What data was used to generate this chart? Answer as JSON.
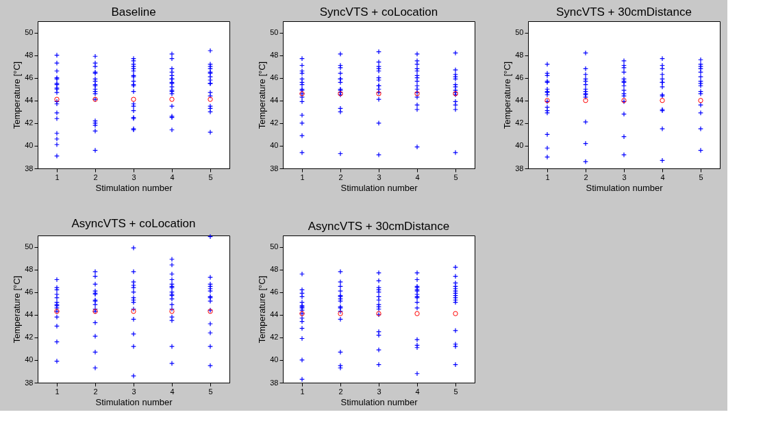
{
  "chart_data": [
    {
      "type": "scatter",
      "title": "Baseline",
      "xlabel": "Stimulation number",
      "ylabel": "Temperature [°C]",
      "xlim": [
        0.5,
        5.5
      ],
      "ylim": [
        38,
        51
      ],
      "xticks": [
        1,
        2,
        3,
        4,
        5
      ],
      "yticks": [
        38,
        40,
        42,
        44,
        46,
        48,
        50
      ],
      "grid": false,
      "series": [
        {
          "color": "#0000ff",
          "marker": "cross",
          "x": [
            1,
            1,
            1,
            1,
            1,
            1,
            1,
            1,
            1,
            1,
            1,
            1,
            1,
            1,
            1,
            1,
            1,
            1,
            2,
            2,
            2,
            2,
            2,
            2,
            2,
            2,
            2,
            2,
            2,
            2,
            2,
            2,
            2,
            2,
            2,
            2,
            3,
            3,
            3,
            3,
            3,
            3,
            3,
            3,
            3,
            3,
            3,
            3,
            3,
            3,
            3,
            3,
            3,
            3,
            3,
            4,
            4,
            4,
            4,
            4,
            4,
            4,
            4,
            4,
            4,
            4,
            4,
            4,
            4,
            4,
            4,
            4,
            5,
            5,
            5,
            5,
            5,
            5,
            5,
            5,
            5,
            5,
            5,
            5,
            5,
            5,
            5,
            5
          ],
          "values": [
            48.0,
            47.3,
            46.6,
            46.0,
            45.9,
            45.5,
            45.4,
            45.1,
            45.0,
            44.7,
            43.9,
            43.7,
            42.9,
            42.4,
            41.1,
            40.6,
            40.1,
            39.1,
            47.9,
            47.3,
            47.0,
            46.5,
            46.4,
            45.9,
            45.7,
            45.4,
            45.3,
            45.0,
            44.8,
            44.6,
            44.1,
            42.2,
            42.0,
            41.8,
            41.3,
            39.6,
            47.7,
            47.5,
            47.2,
            47.0,
            46.8,
            46.6,
            46.2,
            46.1,
            45.7,
            45.4,
            45.3,
            44.8,
            43.7,
            43.5,
            43.1,
            42.5,
            42.4,
            41.5,
            41.4,
            48.1,
            47.7,
            46.8,
            46.5,
            46.2,
            45.9,
            45.9,
            45.6,
            45.5,
            45.2,
            44.9,
            44.8,
            44.6,
            43.5,
            42.6,
            42.5,
            41.4,
            48.4,
            47.2,
            47.0,
            46.8,
            46.5,
            46.4,
            46.1,
            45.8,
            45.5,
            45.5,
            44.7,
            44.4,
            43.5,
            43.3,
            43.0,
            41.2
          ]
        },
        {
          "color": "#ff0000",
          "marker": "circle",
          "x": [
            1,
            2,
            3,
            4,
            5
          ],
          "values": [
            44.1,
            44.1,
            44.1,
            44.1,
            44.1
          ]
        }
      ]
    },
    {
      "type": "scatter",
      "title": "SyncVTS + coLocation",
      "xlabel": "Stimulation number",
      "ylabel": "Temperature [°C]",
      "xlim": [
        0.5,
        5.5
      ],
      "ylim": [
        38,
        51
      ],
      "xticks": [
        1,
        2,
        3,
        4,
        5
      ],
      "yticks": [
        38,
        40,
        42,
        44,
        46,
        48,
        50
      ],
      "grid": false,
      "series": [
        {
          "color": "#0000ff",
          "marker": "cross",
          "x": [
            1,
            1,
            1,
            1,
            1,
            1,
            1,
            1,
            1,
            1,
            1,
            1,
            1,
            1,
            1,
            1,
            2,
            2,
            2,
            2,
            2,
            2,
            2,
            2,
            2,
            2,
            2,
            2,
            2,
            2,
            3,
            3,
            3,
            3,
            3,
            3,
            3,
            3,
            3,
            3,
            3,
            3,
            3,
            3,
            4,
            4,
            4,
            4,
            4,
            4,
            4,
            4,
            4,
            4,
            4,
            4,
            4,
            4,
            4,
            5,
            5,
            5,
            5,
            5,
            5,
            5,
            5,
            5,
            5,
            5,
            5,
            5,
            5
          ],
          "values": [
            47.7,
            47.1,
            46.6,
            46.4,
            45.9,
            45.6,
            45.4,
            45.0,
            44.9,
            44.6,
            44.3,
            43.9,
            42.7,
            42.0,
            40.9,
            39.4,
            48.1,
            47.1,
            46.9,
            46.4,
            45.9,
            45.9,
            45.6,
            45.0,
            44.9,
            44.7,
            44.5,
            43.3,
            43.0,
            39.3,
            48.3,
            47.4,
            47.0,
            46.8,
            46.6,
            46.0,
            45.8,
            45.3,
            45.3,
            45.0,
            44.7,
            44.1,
            42.0,
            39.2,
            48.1,
            47.5,
            47.2,
            46.8,
            46.6,
            46.2,
            46.0,
            45.7,
            45.3,
            45.0,
            44.7,
            44.3,
            43.6,
            43.2,
            39.9,
            48.2,
            46.7,
            46.3,
            46.1,
            45.9,
            45.4,
            45.2,
            44.9,
            44.7,
            44.5,
            43.9,
            43.6,
            43.2,
            39.4
          ]
        },
        {
          "color": "#ff0000",
          "marker": "circle",
          "x": [
            1,
            2,
            3,
            4,
            5
          ],
          "values": [
            44.6,
            44.6,
            44.6,
            44.6,
            44.6
          ]
        }
      ]
    },
    {
      "type": "scatter",
      "title": "SyncVTS + 30cmDistance",
      "xlabel": "Stimulation number",
      "ylabel": "Temperature [°C]",
      "xlim": [
        0.5,
        5.5
      ],
      "ylim": [
        38,
        51
      ],
      "xticks": [
        1,
        2,
        3,
        4,
        5
      ],
      "yticks": [
        38,
        40,
        42,
        44,
        46,
        48,
        50
      ],
      "grid": false,
      "series": [
        {
          "color": "#0000ff",
          "marker": "cross",
          "x": [
            1,
            1,
            1,
            1,
            1,
            1,
            1,
            1,
            1,
            1,
            1,
            1,
            1,
            1,
            1,
            1,
            2,
            2,
            2,
            2,
            2,
            2,
            2,
            2,
            2,
            2,
            2,
            2,
            2,
            2,
            3,
            3,
            3,
            3,
            3,
            3,
            3,
            3,
            3,
            3,
            3,
            3,
            3,
            3,
            3,
            4,
            4,
            4,
            4,
            4,
            4,
            4,
            4,
            4,
            4,
            4,
            4,
            4,
            4,
            5,
            5,
            5,
            5,
            5,
            5,
            5,
            5,
            5,
            5,
            5,
            5,
            5,
            5,
            5
          ],
          "values": [
            47.2,
            46.4,
            46.2,
            45.7,
            45.6,
            45.0,
            44.8,
            44.7,
            44.5,
            43.9,
            43.4,
            43.1,
            42.9,
            41.0,
            39.8,
            39.0,
            48.2,
            46.8,
            46.3,
            45.9,
            45.7,
            45.4,
            45.0,
            44.8,
            44.6,
            44.5,
            44.3,
            42.1,
            40.2,
            38.6,
            47.5,
            47.1,
            46.9,
            46.5,
            45.9,
            45.7,
            45.6,
            45.3,
            44.9,
            44.6,
            44.4,
            43.9,
            42.8,
            40.8,
            39.2,
            47.7,
            47.1,
            46.8,
            46.3,
            45.9,
            45.6,
            45.6,
            45.2,
            44.5,
            44.4,
            43.2,
            43.1,
            41.5,
            38.7,
            47.6,
            47.2,
            47.0,
            46.8,
            46.5,
            46.1,
            45.7,
            45.5,
            45.3,
            44.8,
            44.6,
            43.6,
            42.9,
            41.5,
            39.6
          ]
        },
        {
          "color": "#ff0000",
          "marker": "circle",
          "x": [
            1,
            2,
            3,
            4,
            5
          ],
          "values": [
            44.0,
            44.0,
            44.0,
            44.0,
            44.0
          ]
        }
      ]
    },
    {
      "type": "scatter",
      "title": "AsyncVTS + coLocation",
      "xlabel": "Stimulation number",
      "ylabel": "Temperature [°C]",
      "xlim": [
        0.5,
        5.5
      ],
      "ylim": [
        38,
        51
      ],
      "xticks": [
        1,
        2,
        3,
        4,
        5
      ],
      "yticks": [
        38,
        40,
        42,
        44,
        46,
        48,
        50
      ],
      "grid": false,
      "series": [
        {
          "color": "#0000ff",
          "marker": "cross",
          "x": [
            1,
            1,
            1,
            1,
            1,
            1,
            1,
            1,
            1,
            1,
            1,
            1,
            1,
            1,
            2,
            2,
            2,
            2,
            2,
            2,
            2,
            2,
            2,
            2,
            2,
            2,
            2,
            2,
            2,
            3,
            3,
            3,
            3,
            3,
            3,
            3,
            3,
            3,
            3,
            3,
            3,
            3,
            3,
            4,
            4,
            4,
            4,
            4,
            4,
            4,
            4,
            4,
            4,
            4,
            4,
            4,
            4,
            4,
            4,
            4,
            5,
            5,
            5,
            5,
            5,
            5,
            5,
            5,
            5,
            5,
            5,
            5,
            5,
            5
          ],
          "values": [
            47.1,
            46.4,
            46.2,
            45.8,
            45.5,
            45.1,
            44.9,
            44.8,
            44.6,
            44.3,
            43.8,
            43.0,
            41.6,
            39.9,
            47.8,
            47.4,
            46.7,
            46.1,
            45.9,
            45.8,
            45.3,
            45.2,
            44.9,
            44.5,
            44.3,
            43.3,
            42.1,
            40.7,
            39.3,
            49.9,
            47.8,
            46.9,
            46.6,
            46.4,
            46.0,
            45.5,
            45.3,
            45.1,
            44.5,
            43.6,
            42.3,
            41.2,
            38.6,
            48.9,
            48.4,
            47.6,
            47.1,
            46.7,
            46.5,
            46.4,
            46.0,
            45.8,
            45.7,
            45.4,
            44.9,
            44.5,
            43.8,
            43.5,
            41.2,
            39.7,
            50.9,
            47.3,
            46.7,
            46.5,
            46.3,
            46.1,
            45.6,
            45.5,
            45.2,
            44.4,
            43.2,
            42.4,
            41.2,
            39.5
          ]
        },
        {
          "color": "#ff0000",
          "marker": "circle",
          "x": [
            1,
            2,
            3,
            4,
            5
          ],
          "values": [
            44.3,
            44.3,
            44.3,
            44.3,
            44.3
          ]
        }
      ]
    },
    {
      "type": "scatter",
      "title": "AsyncVTS + 30cmDistance",
      "xlabel": "Stimulation number",
      "ylabel": "Temperature [°C]",
      "xlim": [
        0.5,
        5.5
      ],
      "ylim": [
        38,
        51
      ],
      "xticks": [
        1,
        2,
        3,
        4,
        5
      ],
      "yticks": [
        38,
        40,
        42,
        44,
        46,
        48,
        50
      ],
      "grid": false,
      "series": [
        {
          "color": "#0000ff",
          "marker": "cross",
          "x": [
            1,
            1,
            1,
            1,
            1,
            1,
            1,
            1,
            1,
            1,
            1,
            1,
            1,
            1,
            1,
            1,
            2,
            2,
            2,
            2,
            2,
            2,
            2,
            2,
            2,
            2,
            2,
            2,
            2,
            2,
            2,
            3,
            3,
            3,
            3,
            3,
            3,
            3,
            3,
            3,
            3,
            3,
            3,
            3,
            3,
            3,
            4,
            4,
            4,
            4,
            4,
            4,
            4,
            4,
            4,
            4,
            4,
            4,
            4,
            4,
            4,
            5,
            5,
            5,
            5,
            5,
            5,
            5,
            5,
            5,
            5,
            5,
            5,
            5,
            5,
            5
          ],
          "values": [
            47.6,
            46.2,
            45.9,
            45.6,
            45.1,
            44.8,
            44.7,
            44.6,
            44.4,
            44.1,
            43.7,
            43.4,
            42.8,
            41.9,
            40.0,
            38.3,
            47.8,
            46.9,
            46.5,
            46.1,
            45.7,
            45.6,
            45.4,
            45.2,
            44.7,
            44.6,
            44.3,
            43.6,
            40.7,
            39.5,
            39.3,
            47.7,
            47.0,
            46.4,
            46.2,
            46.0,
            45.6,
            45.3,
            44.9,
            44.7,
            44.5,
            44.0,
            42.5,
            42.2,
            40.9,
            39.6,
            47.7,
            47.1,
            46.5,
            46.4,
            46.2,
            46.1,
            45.8,
            45.6,
            45.5,
            45.1,
            44.6,
            41.8,
            41.3,
            41.1,
            38.8,
            48.2,
            47.4,
            46.8,
            46.5,
            46.3,
            46.1,
            45.9,
            45.7,
            45.5,
            45.3,
            45.1,
            42.6,
            41.4,
            41.2,
            39.6
          ]
        },
        {
          "color": "#ff0000",
          "marker": "circle",
          "x": [
            1,
            2,
            3,
            4,
            5
          ],
          "values": [
            44.1,
            44.1,
            44.1,
            44.1,
            44.1
          ]
        }
      ]
    }
  ]
}
